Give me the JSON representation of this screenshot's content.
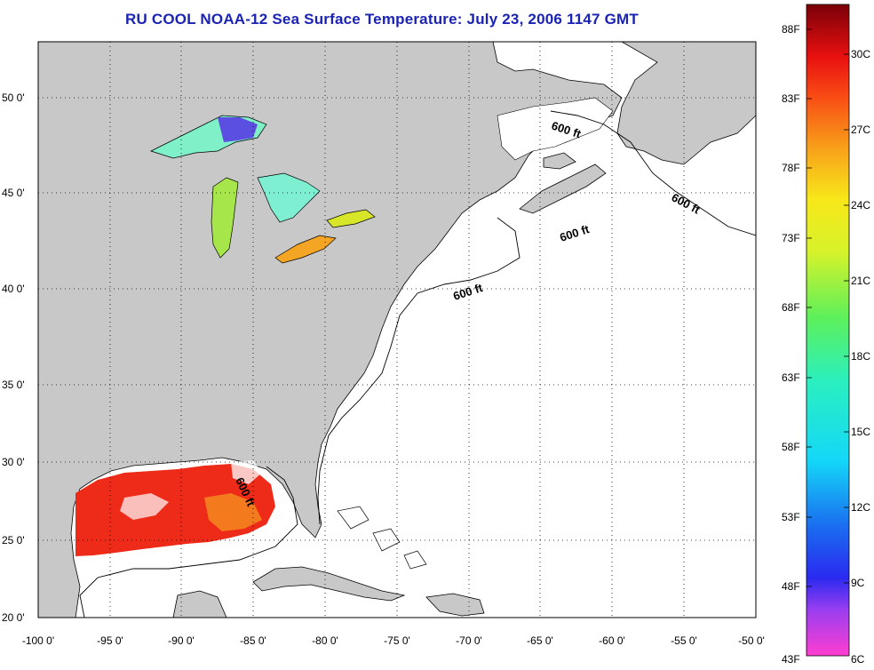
{
  "title": "RU COOL  NOAA-12  Sea Surface Temperature:  July 23, 2006 1147 GMT",
  "map": {
    "lon_range": [
      -100,
      -50
    ],
    "lat_range": [
      20,
      52.5
    ],
    "lon_ticks": [
      "-100 0'",
      "-95 0'",
      "-90 0'",
      "-85 0'",
      "-80 0'",
      "-75 0'",
      "-70 0'",
      "-65 0'",
      "-60 0'",
      "-55 0'",
      "-50 0'"
    ],
    "lat_ticks": [
      "20 0'",
      "25 0'",
      "30 0'",
      "35 0'",
      "40 0'",
      "45 0'",
      "50 0'"
    ],
    "lat_tick_values": [
      20,
      25,
      30,
      35,
      40,
      45,
      50
    ],
    "grid": "dotted",
    "land_color": "#c8c8c8",
    "ocean_color": "#ffffff",
    "isobath_labels": [
      "600 ft",
      "600 ft",
      "600 ft",
      "600 ft",
      "600 ft"
    ]
  },
  "colorbar": {
    "fahrenheit_labels": [
      "88F",
      "83F",
      "78F",
      "73F",
      "68F",
      "63F",
      "58F",
      "53F",
      "48F",
      "43F"
    ],
    "celsius_labels": [
      "30C",
      "27C",
      "24C",
      "21C",
      "18C",
      "15C",
      "12C",
      "9C",
      "6C"
    ],
    "range_c": [
      6,
      32
    ],
    "range_f": [
      43,
      88
    ]
  }
}
